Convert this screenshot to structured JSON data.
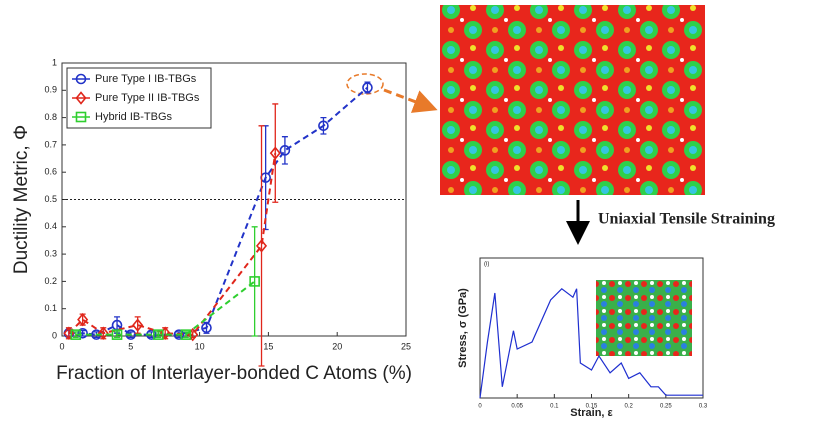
{
  "chart_data": [
    {
      "type": "scatter",
      "x_label": "Fraction of Interlayer-bonded C Atoms (%)",
      "y_label": "Ductility Metric, Φ",
      "xlim": [
        0,
        25
      ],
      "xticks": [
        0,
        5,
        10,
        15,
        20,
        25
      ],
      "ylim": [
        0,
        1
      ],
      "yticks": [
        0,
        0.1,
        0.2,
        0.3,
        0.4,
        0.5,
        0.6,
        0.7,
        0.8,
        0.9,
        1
      ],
      "hline": 0.5,
      "legend": "upper-left",
      "series": [
        {
          "name": "Pure Type I IB-TBGs",
          "color": "#2233c8",
          "marker": "circle",
          "x": [
            0.5,
            1.5,
            2.5,
            4,
            5,
            6.5,
            8.5,
            10.5,
            14.8,
            16.2,
            19,
            22.2
          ],
          "values": [
            0.01,
            0.01,
            0.005,
            0.04,
            0.005,
            0.005,
            0.005,
            0.03,
            0.58,
            0.68,
            0.77,
            0.91
          ],
          "errors": [
            0.01,
            0.01,
            0.01,
            0.03,
            0.01,
            0.01,
            0.01,
            0.02,
            0.19,
            0.05,
            0.03,
            0.02
          ]
        },
        {
          "name": "Pure Type II IB-TBGs",
          "color": "#e0261b",
          "marker": "diamond",
          "x": [
            0.5,
            1.5,
            3,
            5.5,
            7.5,
            9.5,
            14.5,
            15.5
          ],
          "values": [
            0.01,
            0.06,
            0.01,
            0.04,
            0.01,
            0.005,
            0.33,
            0.67
          ],
          "errors": [
            0.02,
            0.02,
            0.02,
            0.03,
            0.02,
            0.01,
            0.44,
            0.18
          ]
        },
        {
          "name": "Hybrid IB-TBGs",
          "color": "#2fcf2f",
          "marker": "square",
          "x": [
            1,
            4,
            7,
            9,
            14
          ],
          "values": [
            0.005,
            0.005,
            0.005,
            0.005,
            0.2
          ],
          "errors": [
            0.01,
            0.01,
            0.01,
            0.01,
            0.2
          ]
        }
      ]
    },
    {
      "type": "line",
      "panel_label": "(i)",
      "x_label": "Strain, ε",
      "y_label": "Stress, σ (GPa)",
      "xlim": [
        0,
        0.3
      ],
      "xticks": [
        0,
        0.05,
        0.1,
        0.15,
        0.2,
        0.25,
        0.3
      ],
      "ylim": [
        0,
        100
      ],
      "series": [
        {
          "color": "#1f2fd0",
          "x": [
            0,
            0.01,
            0.02,
            0.03,
            0.045,
            0.05,
            0.07,
            0.095,
            0.11,
            0.125,
            0.13,
            0.135,
            0.15,
            0.16,
            0.175,
            0.19,
            0.2,
            0.215,
            0.23,
            0.24,
            0.25,
            0.3
          ],
          "values": [
            0,
            40,
            75,
            8,
            48,
            35,
            40,
            70,
            78,
            72,
            78,
            25,
            20,
            30,
            18,
            25,
            14,
            18,
            8,
            8,
            2,
            2
          ]
        }
      ]
    }
  ],
  "annotation": "Uniaxial Tensile Straining"
}
